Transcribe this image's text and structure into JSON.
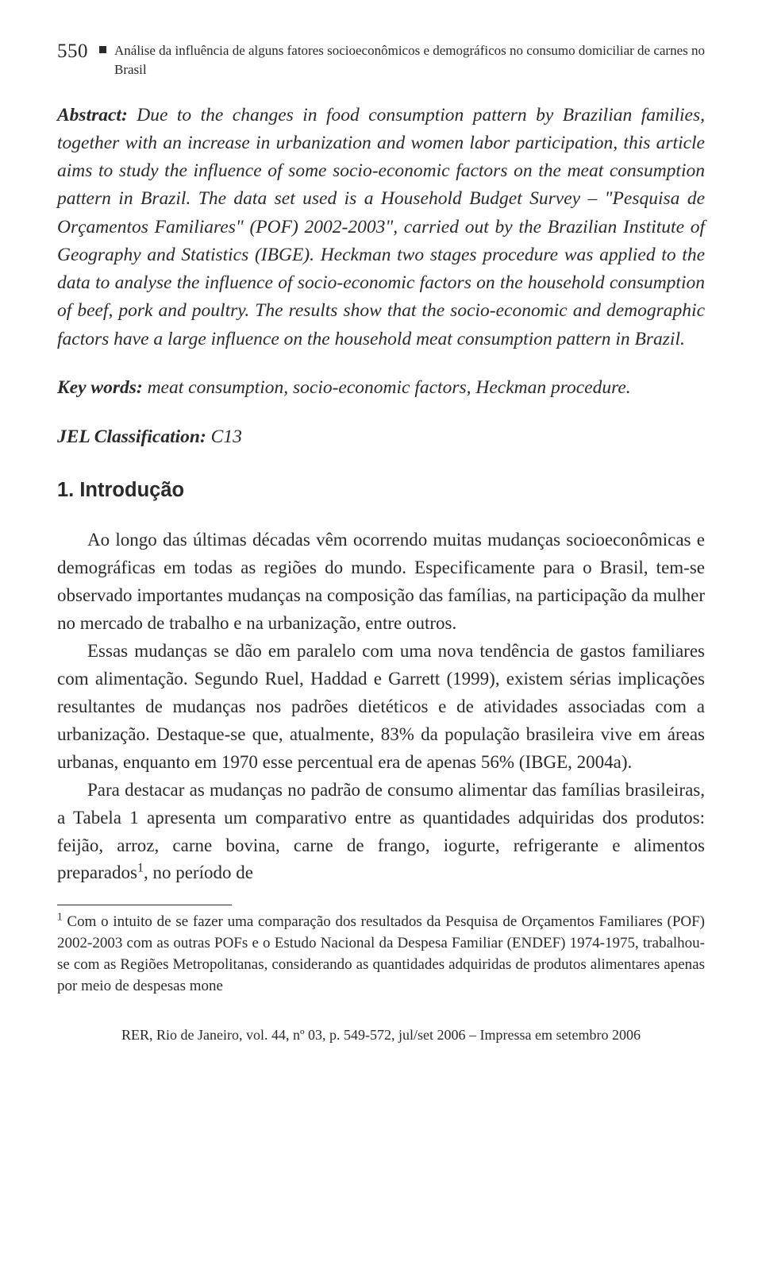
{
  "header": {
    "page_number": "550",
    "running_title": "Análise da influência de alguns fatores socioeconômicos e demográficos no consumo domiciliar de carnes no Brasil"
  },
  "abstract": {
    "label": "Abstract:",
    "text": " Due to the changes in food consumption pattern by Brazilian families, together with an increase in urbanization and women labor participation, this article aims to study the influence of some socio-economic factors on the meat consumption pattern in Brazil. The data set used is a Household Budget Survey – \"Pesquisa de Orçamentos Familiares\" (POF) 2002-2003\", carried out by the Brazilian Institute of Geography and Statistics (IBGE). Heckman two stages procedure was applied to the data to analyse the influence of socio-economic factors on the household consumption of beef, pork and poultry. The results show that the socio-economic and demographic factors have a large influence on the household meat consumption pattern in Brazil."
  },
  "keywords": {
    "label": "Key words:",
    "text": " meat consumption, socio-economic factors, Heckman procedure."
  },
  "jel": {
    "label": "JEL Classification:",
    "text": " C13"
  },
  "section": {
    "heading": "1. Introdução",
    "p1": "Ao longo das últimas décadas vêm ocorrendo muitas mudanças socioeconômicas e demográficas em todas as regiões do mundo. Especificamente para o Brasil, tem-se observado importantes mudanças na composição das famílias, na participação da mulher no mercado de trabalho e na urbanização, entre outros.",
    "p2": "Essas mudanças se dão em paralelo com uma nova tendência de gastos familiares com alimentação. Segundo Ruel, Haddad e Garrett (1999), existem sérias implicações resultantes de mudanças nos padrões dietéticos e de atividades associadas com a urbanização. Destaque-se que, atualmente, 83% da população brasileira vive em áreas urbanas, enquanto em 1970 esse percentual era de apenas 56% (IBGE, 2004a).",
    "p3_pre": "Para destacar as mudanças no padrão de consumo alimentar das famílias brasileiras, a Tabela 1 apresenta um comparativo entre as quantidades adquiridas dos produtos: feijão, arroz, carne bovina, carne de frango, iogurte, refrigerante e alimentos preparados",
    "p3_sup": "1",
    "p3_post": ", no período de"
  },
  "footnote": {
    "sup": "1",
    "text": " Com o intuito de se fazer uma comparação dos resultados da Pesquisa de Orçamentos Familiares (POF) 2002-2003 com as outras POFs e o Estudo Nacional da Despesa Familiar (ENDEF) 1974-1975, trabalhou-se com as Regiões Metropolitanas, considerando as quantidades adquiridas de produtos alimentares apenas por meio de despesas mone"
  },
  "footer": {
    "text": "RER, Rio de Janeiro, vol. 44, nº 03, p. 549-572, jul/set 2006 – Impressa em setembro 2006"
  }
}
